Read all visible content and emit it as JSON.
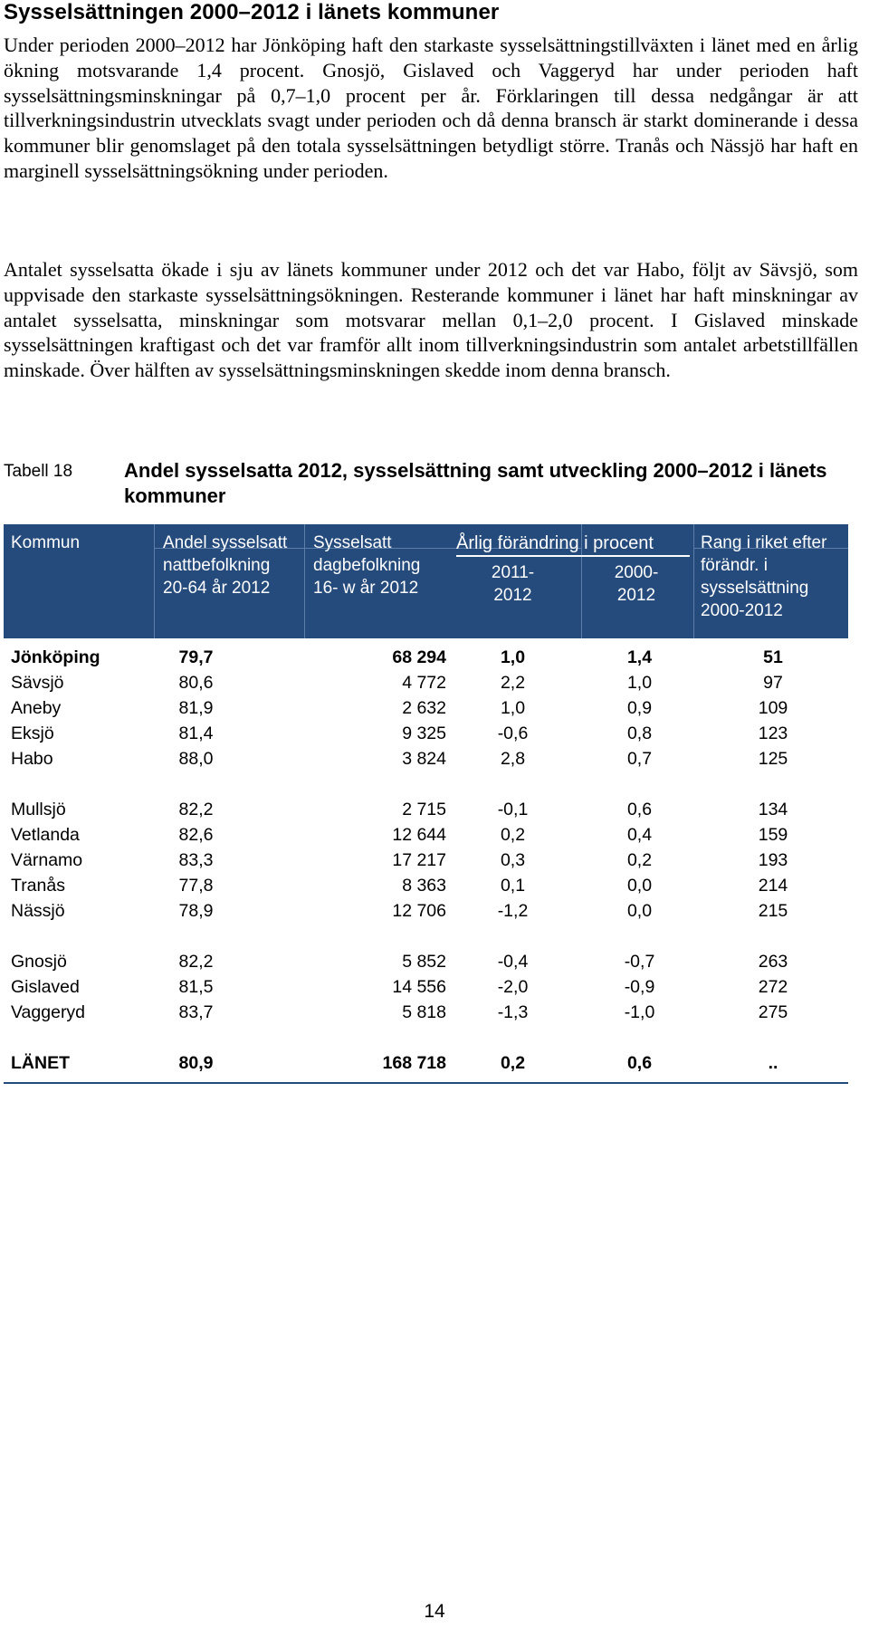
{
  "heading": "Sysselsättningen 2000–2012 i länets kommuner",
  "paragraphs": [
    "Under perioden 2000–2012 har Jönköping haft den starkaste sysselsättningstillväxten i länet med en årlig ökning motsvarande 1,4 procent. Gnosjö, Gislaved och Vaggeryd har under perioden haft sysselsättningsminskningar på 0,7–1,0 procent per år. Förkla­ringen till dessa nedgångar är att tillverkningsindustrin utvecklats svagt under perioden och då denna bransch är starkt dominerande i dessa kommuner blir genomslaget på den totala sysselsättningen betydligt större. Tranås och Nässjö har haft en marginell syssel­sättningsökning under perioden.",
    "Antalet sysselsatta ökade i sju av länets kommuner under 2012 och det var Habo, följt av Sävsjö, som uppvisade den starkaste sysselsättningsökningen. Resterande kommu­ner i länet har haft minskningar av antalet sysselsatta, minskningar som motsvarar mellan 0,1–2,0 procent. I Gislaved minskade sysselsättningen kraftigast och det var framför allt inom tillverkningsindustrin som antalet arbetstillfällen minskade. Över hälften av sysselsättningsminskningen skedde inom denna bransch."
  ],
  "table": {
    "label": "Tabell 18",
    "caption": "Andel sysselsatta 2012, sysselsättning samt utveckling 2000–2012 i länets kommuner",
    "header": {
      "kommun": "Kommun",
      "andel": "Andel sysselsatt nattbefolkning 20-64 år 2012",
      "sysselsatt": "Sysselsatt dagbefolkning 16- w år 2012",
      "arlig": "Årlig förändring i procent",
      "period1": "2011-\n2012",
      "period2": "2000-\n2012",
      "rang": "Rang i riket efter förändr. i sysselsättning 2000-2012"
    },
    "rows": [
      {
        "kommun": "Jönköping",
        "andel": "79,7",
        "sysselsatt": "68 294",
        "f1": "1,0",
        "f2": "1,4",
        "rang": "51",
        "bold": true
      },
      {
        "kommun": "Sävsjö",
        "andel": "80,6",
        "sysselsatt": "4 772",
        "f1": "2,2",
        "f2": "1,0",
        "rang": "97"
      },
      {
        "kommun": "Aneby",
        "andel": "81,9",
        "sysselsatt": "2 632",
        "f1": "1,0",
        "f2": "0,9",
        "rang": "109"
      },
      {
        "kommun": "Eksjö",
        "andel": "81,4",
        "sysselsatt": "9 325",
        "f1": "-0,6",
        "f2": "0,8",
        "rang": "123"
      },
      {
        "kommun": "Habo",
        "andel": "88,0",
        "sysselsatt": "3 824",
        "f1": "2,8",
        "f2": "0,7",
        "rang": "125"
      },
      {
        "kommun": "Mullsjö",
        "andel": "82,2",
        "sysselsatt": "2 715",
        "f1": "-0,1",
        "f2": "0,6",
        "rang": "134"
      },
      {
        "kommun": "Vetlanda",
        "andel": "82,6",
        "sysselsatt": "12 644",
        "f1": "0,2",
        "f2": "0,4",
        "rang": "159"
      },
      {
        "kommun": "Värnamo",
        "andel": "83,3",
        "sysselsatt": "17 217",
        "f1": "0,3",
        "f2": "0,2",
        "rang": "193"
      },
      {
        "kommun": "Tranås",
        "andel": "77,8",
        "sysselsatt": "8 363",
        "f1": "0,1",
        "f2": "0,0",
        "rang": "214"
      },
      {
        "kommun": "Nässjö",
        "andel": "78,9",
        "sysselsatt": "12 706",
        "f1": "-1,2",
        "f2": "0,0",
        "rang": "215"
      },
      {
        "kommun": "Gnosjö",
        "andel": "82,2",
        "sysselsatt": "5 852",
        "f1": "-0,4",
        "f2": "-0,7",
        "rang": "263"
      },
      {
        "kommun": "Gislaved",
        "andel": "81,5",
        "sysselsatt": "14 556",
        "f1": "-2,0",
        "f2": "-0,9",
        "rang": "272"
      },
      {
        "kommun": "Vaggeryd",
        "andel": "83,7",
        "sysselsatt": "5 818",
        "f1": "-1,3",
        "f2": "-1,0",
        "rang": "275"
      },
      {
        "kommun": "LÄNET",
        "andel": "80,9",
        "sysselsatt": "168 718",
        "f1": "0,2",
        "f2": "0,6",
        "rang": "..",
        "bold": true
      }
    ]
  },
  "page_number": "14",
  "colors": {
    "header_bg": "#254a7c",
    "header_text": "#ffffff"
  }
}
